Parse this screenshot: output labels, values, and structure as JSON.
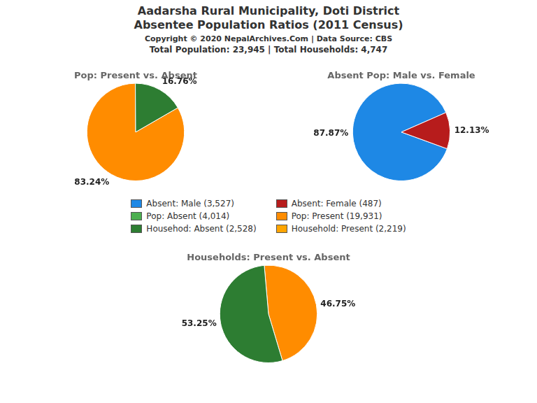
{
  "title": [
    "Aadarsha Rural Municipality, Doti District",
    "Absentee Population Ratios (2011 Census)"
  ],
  "subtitle": [
    "Copyright © 2020 NepalArchives.Com | Data Source: CBS",
    "Total Population: 23,945 | Total Households: 4,747"
  ],
  "legend_entries": [
    {
      "name": "Absent: Male (3,527)",
      "color": "#1E88E5"
    },
    {
      "name": "Absent: Female (487)",
      "color": "#B71C1C"
    },
    {
      "name": "Pop: Absent (4,014)",
      "color": "#4CAF50"
    },
    {
      "name": "Pop: Present (19,931)",
      "color": "#FF8C00"
    },
    {
      "name": "Househod: Absent (2,528)",
      "color": "#2D7D32"
    },
    {
      "name": "Household: Present (2,219)",
      "color": "#FFA500"
    }
  ],
  "chart_data": [
    {
      "type": "pie",
      "title": "Pop: Present vs. Absent",
      "values": [
        83.24,
        16.76
      ],
      "value_labels": [
        "83.24%",
        "16.76%"
      ],
      "colors": [
        "#FF8C00",
        "#2D7D32"
      ],
      "data_labels": true
    },
    {
      "type": "pie",
      "title": "Absent Pop: Male vs. Female",
      "values": [
        87.87,
        12.13
      ],
      "value_labels": [
        "87.87%",
        "12.13%"
      ],
      "colors": [
        "#1E88E5",
        "#B71C1C"
      ],
      "data_labels": true
    },
    {
      "type": "pie",
      "title": "Households: Present vs. Absent",
      "values": [
        46.75,
        53.25
      ],
      "value_labels": [
        "46.75%",
        "53.25%"
      ],
      "colors": [
        "#FF8C00",
        "#2D7D32"
      ],
      "data_labels": true
    }
  ]
}
